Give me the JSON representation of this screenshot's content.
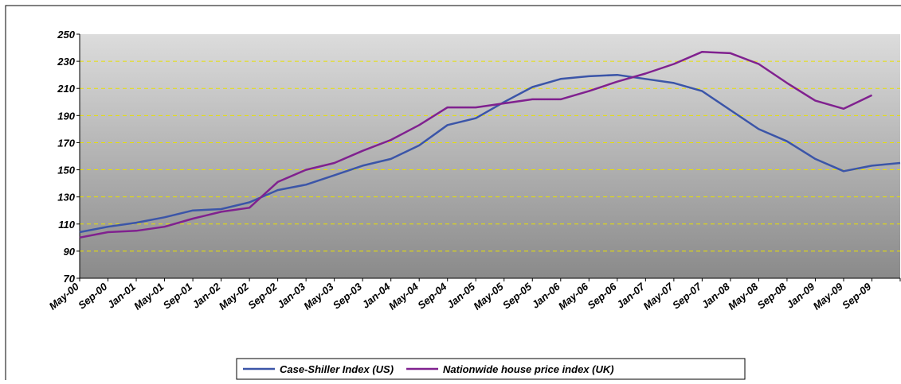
{
  "chart_data": {
    "type": "line",
    "categories": [
      "May-00",
      "Sep-00",
      "Jan-01",
      "May-01",
      "Sep-01",
      "Jan-02",
      "May-02",
      "Sep-02",
      "Jan-03",
      "May-03",
      "Sep-03",
      "Jan-04",
      "May-04",
      "Sep-04",
      "Jan-05",
      "May-05",
      "Sep-05",
      "Jan-06",
      "May-06",
      "Sep-06",
      "Jan-07",
      "May-07",
      "Sep-07",
      "Jan-08",
      "May-08",
      "Sep-08",
      "Jan-09",
      "May-09",
      "Sep-09",
      null
    ],
    "series": [
      {
        "name": "Case-Shiller Index (US)",
        "color": "#3b55a8",
        "values": [
          104,
          108,
          111,
          115,
          120,
          121,
          126,
          135,
          139,
          146,
          153,
          158,
          168,
          183,
          188,
          200,
          211,
          217,
          219,
          220,
          217,
          214,
          208,
          194,
          180,
          171,
          158,
          149,
          153,
          155
        ]
      },
      {
        "name": "Nationwide house price index (UK)",
        "color": "#80218f",
        "values": [
          100,
          104,
          105,
          108,
          114,
          119,
          122,
          141,
          150,
          155,
          164,
          172,
          183,
          196,
          196,
          199,
          202,
          202,
          208,
          215,
          221,
          228,
          237,
          236,
          228,
          214,
          201,
          195,
          205,
          null
        ]
      }
    ],
    "ylim": [
      70,
      250
    ],
    "yticks": [
      70,
      90,
      110,
      130,
      150,
      170,
      190,
      210,
      230,
      250
    ],
    "grid": true,
    "legend": "bottom"
  }
}
